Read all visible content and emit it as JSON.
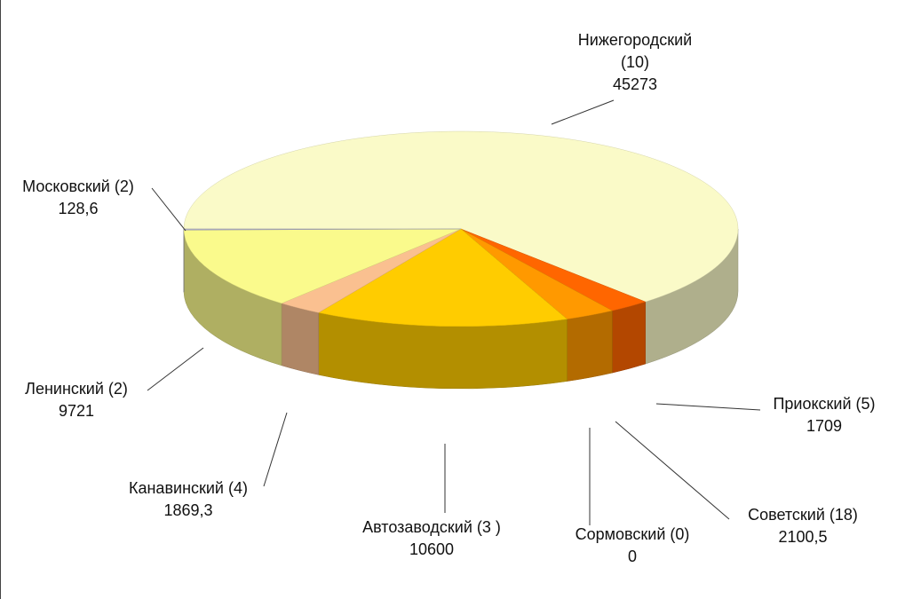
{
  "chart_data": {
    "type": "pie3d",
    "categories": [
      "Нижегородский (10)",
      "Приокский (5)",
      "Советский (18)",
      "Сормовский (0)",
      "Автозаводский (3 )",
      "Канавинский (4)",
      "Ленинский (2)",
      "Московский (2)"
    ],
    "values": [
      45273,
      1709,
      2100.5,
      0,
      10600,
      1869.3,
      9721,
      128.6
    ],
    "value_labels": [
      "45273",
      "1709",
      "2100,5",
      "0",
      "10600",
      "1869,3",
      "9721",
      "128,6"
    ],
    "colors": [
      "#fafac8",
      "#ff6600",
      "#ff9900",
      "#ffb020",
      "#ffcc00",
      "#fac090",
      "#fafa8c",
      "#b0b0c8"
    ]
  }
}
